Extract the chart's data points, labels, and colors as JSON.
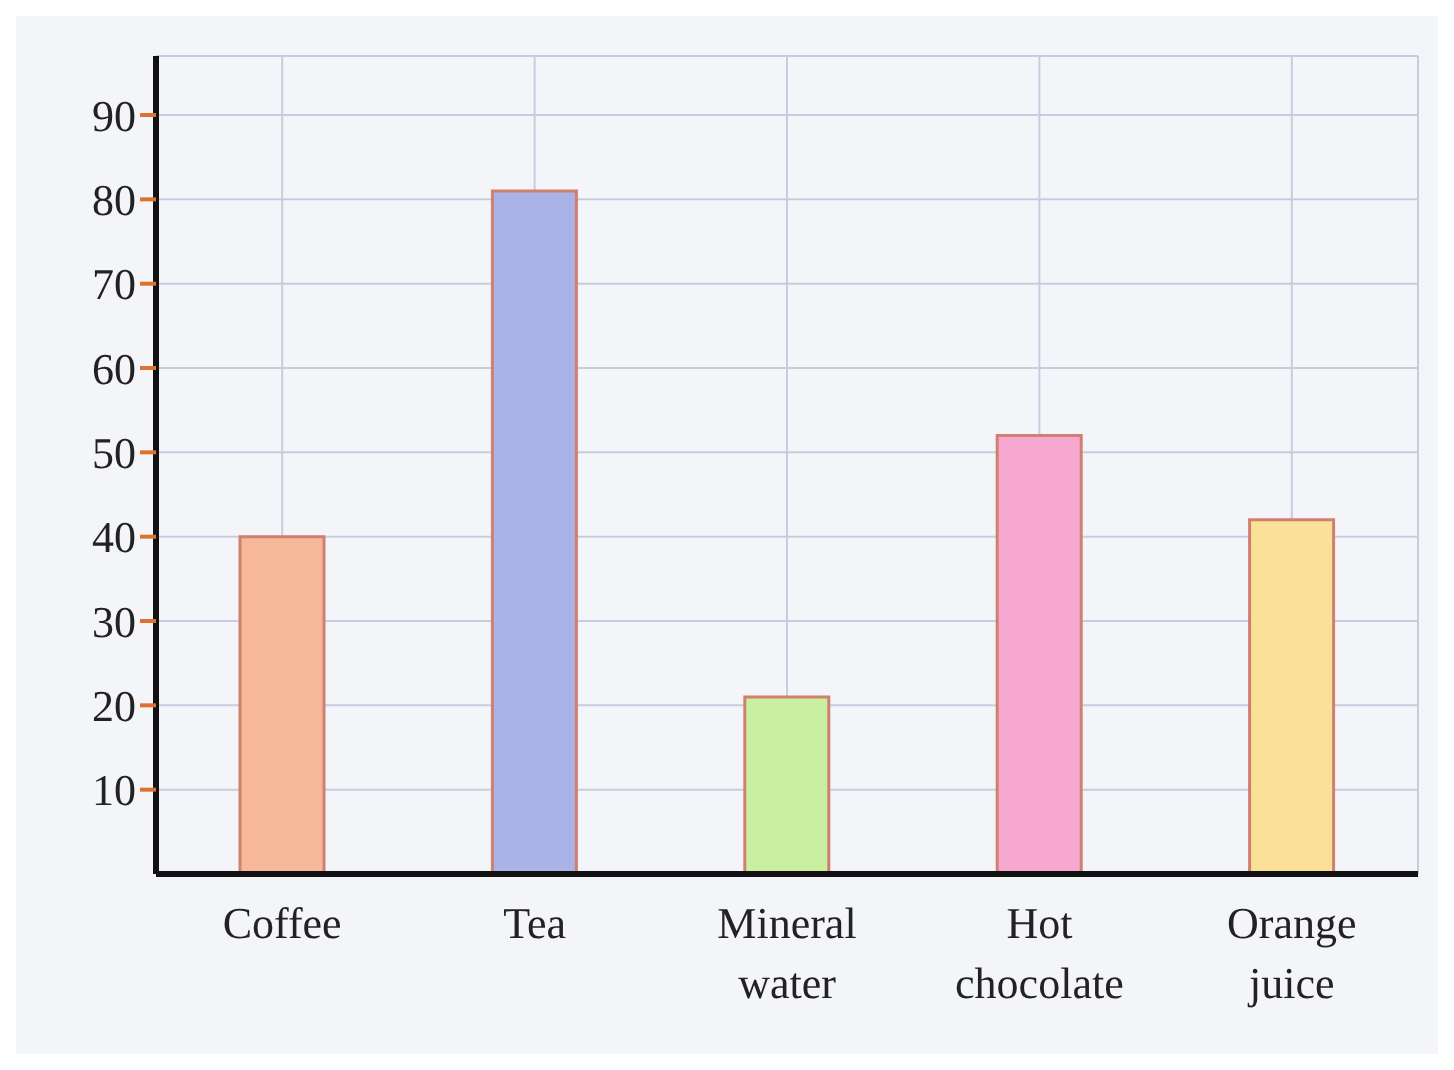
{
  "chart_data": {
    "type": "bar",
    "categories": [
      "Coffee",
      "Tea",
      "Mineral water",
      "Hot chocolate",
      "Orange juice"
    ],
    "values": [
      40,
      81,
      21,
      52,
      42
    ],
    "colors": [
      "#f7b89a",
      "#a9b3e8",
      "#c8f0a0",
      "#f7a8d0",
      "#fbe09a"
    ],
    "ylim": [
      0,
      97
    ],
    "yticks": [
      10,
      20,
      30,
      40,
      50,
      60,
      70,
      80,
      90
    ],
    "grid": true
  }
}
